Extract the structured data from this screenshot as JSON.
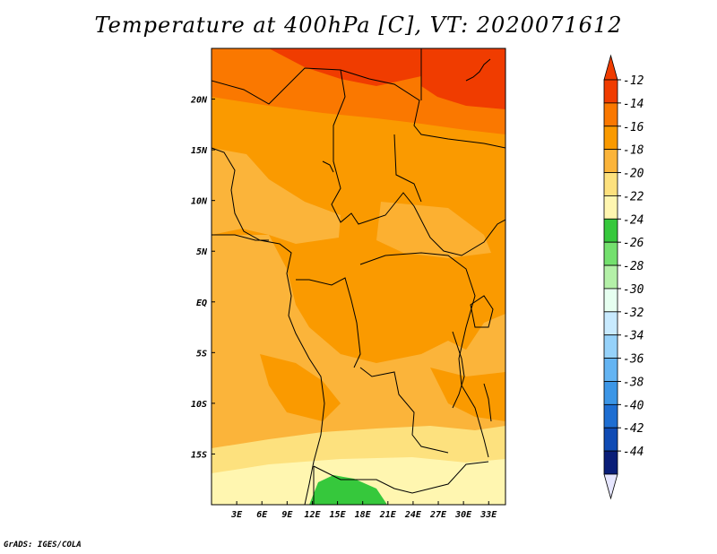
{
  "title": "Temperature at 400hPa [C], VT: 2020071612",
  "credit": "GrADS: IGES/COLA",
  "map": {
    "lon_range": [
      0,
      35
    ],
    "lat_range": [
      -20,
      25
    ],
    "lon_ticks": [
      "3E",
      "6E",
      "9E",
      "12E",
      "15E",
      "18E",
      "21E",
      "24E",
      "27E",
      "30E",
      "33E"
    ],
    "lat_ticks": [
      "20N",
      "15N",
      "10N",
      "5N",
      "EQ",
      "5S",
      "10S",
      "15S"
    ]
  },
  "colorbar": {
    "labels": [
      "-12",
      "-14",
      "-16",
      "-18",
      "-20",
      "-22",
      "-24",
      "-26",
      "-28",
      "-30",
      "-32",
      "-34",
      "-36",
      "-38",
      "-40",
      "-42",
      "-44"
    ],
    "colors": [
      "#f03c00",
      "#fa7800",
      "#fa9a00",
      "#fbb43a",
      "#fde17e",
      "#fff6b0",
      "#36c83c",
      "#74e06e",
      "#b4f0a8",
      "#e6fff0",
      "#c8eafe",
      "#96d2fa",
      "#64b4f2",
      "#3c96e6",
      "#1e6ed2",
      "#0f4bb4",
      "#0a1e78"
    ],
    "over_color": "#f03c00",
    "under_color": "#e6e6ff"
  }
}
